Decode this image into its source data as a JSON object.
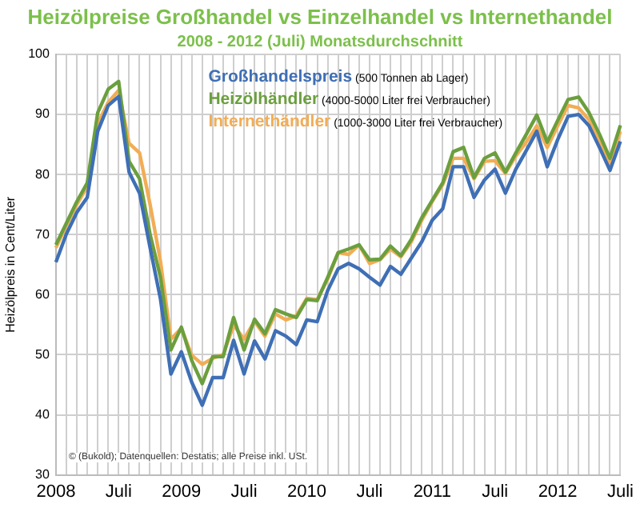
{
  "chart_data": {
    "type": "line",
    "title": "Heizölpreise Großhandel vs Einzelhandel vs Internethandel",
    "subtitle": "2008 - 2012 (Juli) Monatsdurchschnitt",
    "ylabel": "Heizölpreis in Cent/Liter",
    "categories": [
      "2008",
      null,
      null,
      null,
      null,
      null,
      "Juli",
      null,
      null,
      null,
      null,
      null,
      "2009",
      null,
      null,
      null,
      null,
      null,
      "Juli",
      null,
      null,
      null,
      null,
      null,
      "2010",
      null,
      null,
      null,
      null,
      null,
      "Juli",
      null,
      null,
      null,
      null,
      null,
      "2011",
      null,
      null,
      null,
      null,
      null,
      "Juli",
      null,
      null,
      null,
      null,
      null,
      "2012",
      null,
      null,
      null,
      null,
      null,
      "Juli"
    ],
    "series": [
      {
        "name": "Großhandelspreis (500 Tonnen ab Lager)",
        "color": "#3f6fb5",
        "values": [
          65.4,
          70.1,
          73.7,
          76.2,
          87.2,
          91.5,
          93,
          80.4,
          76.9,
          67.9,
          59.3,
          46.8,
          50.5,
          45.4,
          41.6,
          46.2,
          46.2,
          52.4,
          46.8,
          52.3,
          49.3,
          54,
          53.1,
          51.7,
          55.8,
          55.5,
          60.7,
          64.3,
          65.2,
          64.3,
          62.9,
          61.6,
          64.7,
          63.4,
          66.1,
          68.8,
          72.4,
          74.3,
          81.3,
          81.3,
          76.2,
          79.1,
          80.9,
          76.9,
          80.9,
          84,
          87.2,
          81.3,
          85.8,
          89.7,
          90,
          88.1,
          84.5,
          80.7,
          85.5
        ]
      },
      {
        "name": "Heizölhändler (4000-5000 Liter frei Verbraucher)",
        "color": "#6b9f3e",
        "values": [
          68.3,
          71.9,
          75.5,
          78.6,
          90.3,
          94.2,
          95.5,
          82.2,
          79.3,
          70.1,
          62.9,
          50.8,
          54.6,
          49,
          45.2,
          49.7,
          49.7,
          56.2,
          50.8,
          55.9,
          53.5,
          57.5,
          56.8,
          56.2,
          59.2,
          59,
          62.9,
          67,
          67.6,
          68.3,
          65.8,
          65.9,
          68.1,
          66.5,
          69.2,
          72.8,
          75.7,
          78.6,
          83.8,
          84.5,
          79.5,
          82.7,
          83.6,
          80.4,
          83.6,
          86.7,
          89.9,
          85.4,
          89,
          92.5,
          92.9,
          90.3,
          86.7,
          82.7,
          88.2
        ]
      },
      {
        "name": "Internethändler (1000-3000 Liter frei Verbraucher)",
        "color": "#f2ad55",
        "values": [
          67.8,
          71.5,
          75,
          78,
          88.5,
          92,
          94,
          85.2,
          83.6,
          75.1,
          65.6,
          52.6,
          54.4,
          49.9,
          48.4,
          49.4,
          50,
          54.9,
          52.6,
          55.6,
          53.1,
          56.8,
          55.8,
          56.5,
          59.4,
          59.2,
          62.6,
          67,
          66.7,
          68.3,
          65.2,
          65.8,
          67.6,
          66.3,
          68.8,
          72.4,
          75.5,
          78.3,
          82.7,
          82.7,
          79.3,
          82.2,
          82.3,
          80.2,
          83.1,
          85.4,
          88.1,
          84.5,
          88.1,
          91.5,
          91.1,
          89.1,
          85.4,
          81.8,
          87.2
        ]
      }
    ],
    "ylim": [
      30,
      100
    ],
    "yticks": [
      30,
      40,
      50,
      60,
      70,
      80,
      90,
      100
    ],
    "grid": true,
    "legend": "top",
    "marker": "none",
    "line_style": "solid",
    "annotations": [
      "© (Bukold); Datenquellen: Destatis; alle Preise inkl. USt."
    ]
  }
}
